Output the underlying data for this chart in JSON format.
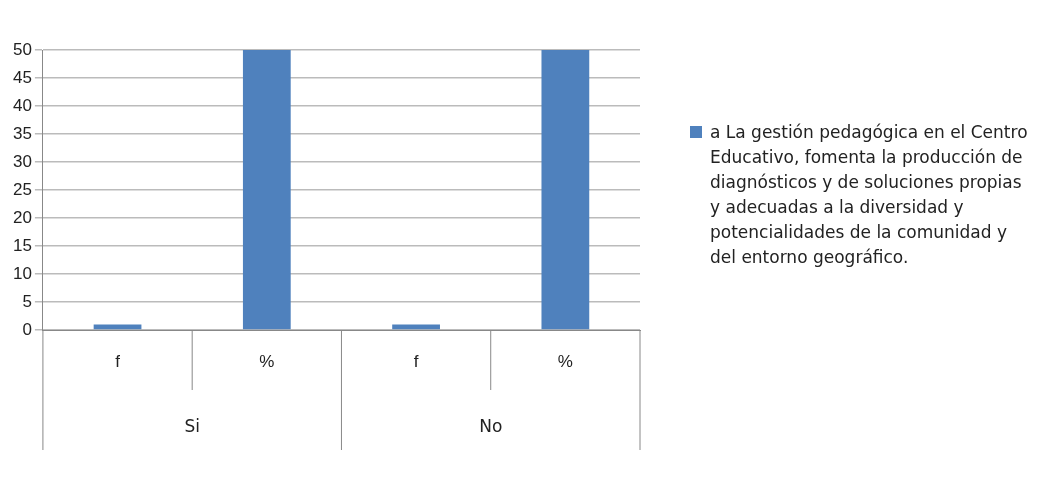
{
  "chart_data": {
    "type": "bar",
    "categories": [
      "f",
      "%",
      "f",
      "%"
    ],
    "series": [
      {
        "name": "a La gestión pedagógica en el Centro Educativo, fomenta la producción de diagnósticos y de soluciones propias y adecuadas a la diversidad y potencialidades de la comunidad y del entorno geográfico.",
        "color": "#4f81bd",
        "values": [
          1,
          50,
          1,
          50
        ]
      }
    ],
    "ylim": [
      0,
      50
    ],
    "yticks": [
      0,
      5,
      10,
      15,
      20,
      25,
      30,
      35,
      40,
      45,
      50
    ],
    "grid": "y",
    "legend": "right",
    "annotations": [
      "Si",
      "No"
    ]
  }
}
